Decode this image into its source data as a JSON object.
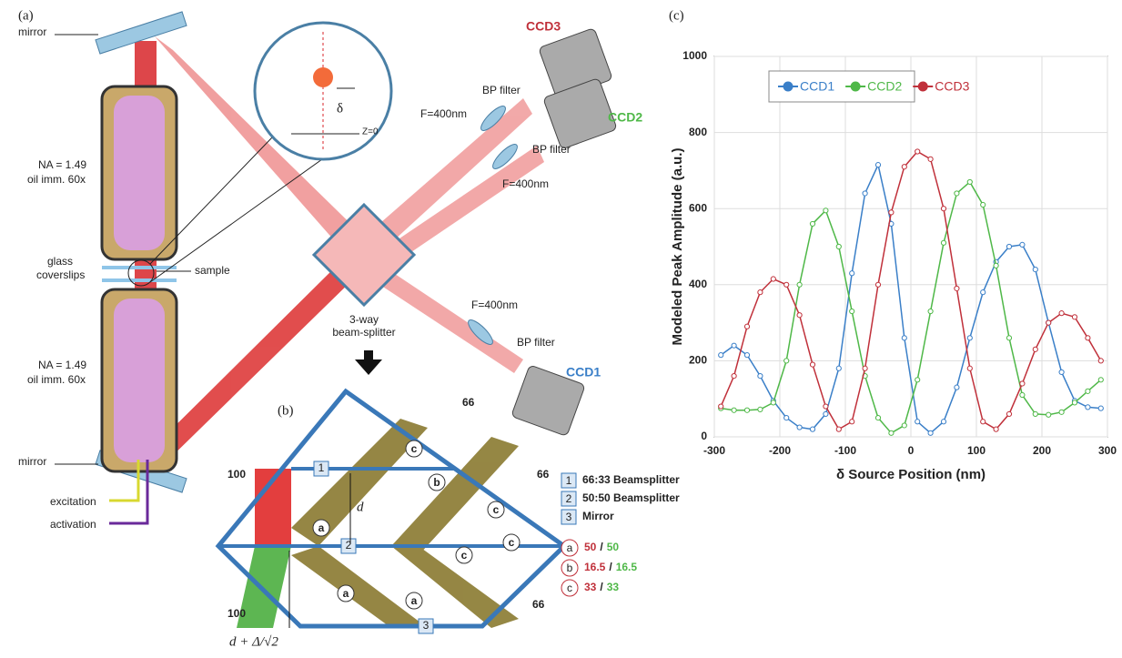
{
  "panel_a": {
    "label": "(a)",
    "mirror_top": "mirror",
    "mirror_bottom": "mirror",
    "objective_top": [
      "NA = 1.49",
      "oil imm. 60x"
    ],
    "objective_bottom": [
      "NA = 1.49",
      "oil imm. 60x"
    ],
    "coverslips": [
      "glass",
      "coverslips"
    ],
    "sample": "sample",
    "excitation": "excitation",
    "activation": "activation",
    "inset_delta": "δ",
    "inset_z": "Z=0",
    "ccd3": "CCD3",
    "ccd2": "CCD2",
    "ccd1": "CCD1",
    "bp_filter_3": "BP filter",
    "bp_filter_2": "BP filter",
    "bp_filter_1": "BP filter",
    "lens_3": "F=400nm",
    "lens_2": "F=400nm",
    "lens_1": "F=400nm",
    "splitter": [
      "3-way",
      "beam-splitter"
    ]
  },
  "panel_b": {
    "label": "(b)",
    "in_top": "100",
    "in_bottom": "100",
    "out_1": "66",
    "out_2": "66",
    "out_3": "66",
    "line_1": "1",
    "line_2": "2",
    "line_3": "3",
    "beams": [
      "c",
      "a",
      "b",
      "c",
      "a",
      "a",
      "c",
      "c"
    ],
    "d": "d",
    "d_delta": "d + Δ/√2",
    "legend": [
      {
        "key": "1",
        "text": "66:33 Beamsplitter"
      },
      {
        "key": "2",
        "text": "50:50 Beamsplitter"
      },
      {
        "key": "3",
        "text": "Mirror"
      }
    ],
    "ratios": [
      {
        "key": "a",
        "parts": [
          "50",
          "/",
          "50"
        ]
      },
      {
        "key": "b",
        "parts": [
          "16.5",
          "/",
          "16.5"
        ]
      },
      {
        "key": "c",
        "parts": [
          "33",
          "/",
          "33"
        ]
      }
    ]
  },
  "chart_data": {
    "type": "line",
    "panel_label": "(c)",
    "x_label": "δ Source Position (nm)",
    "y_label": "Modeled  Peak Amplitude (a.u.)",
    "x": [
      -290,
      -270,
      -250,
      -230,
      -210,
      -190,
      -170,
      -150,
      -130,
      -110,
      -90,
      -70,
      -50,
      -30,
      -10,
      10,
      30,
      50,
      70,
      90,
      110,
      130,
      150,
      170,
      190,
      210,
      230,
      250,
      270,
      290
    ],
    "series": [
      {
        "name": "CCD1",
        "color": "#3a7fc8",
        "values": [
          215,
          240,
          215,
          160,
          95,
          50,
          25,
          20,
          60,
          180,
          430,
          640,
          715,
          560,
          260,
          40,
          10,
          40,
          130,
          260,
          380,
          460,
          500,
          505,
          440,
          300,
          170,
          95,
          78,
          75
        ]
      },
      {
        "name": "CCD2",
        "color": "#4fb848",
        "values": [
          75,
          70,
          70,
          72,
          90,
          200,
          400,
          560,
          595,
          500,
          330,
          160,
          50,
          10,
          30,
          150,
          330,
          510,
          640,
          670,
          610,
          450,
          260,
          110,
          60,
          58,
          65,
          90,
          120,
          150
        ]
      },
      {
        "name": "CCD3",
        "color": "#c0303a",
        "values": [
          80,
          160,
          290,
          380,
          415,
          400,
          320,
          190,
          80,
          20,
          40,
          180,
          400,
          590,
          710,
          750,
          730,
          600,
          390,
          180,
          40,
          20,
          60,
          140,
          230,
          300,
          325,
          315,
          260,
          200
        ]
      }
    ],
    "xlim": [
      -300,
      300
    ],
    "ylim": [
      0,
      1000
    ],
    "xticks": [
      -300,
      -200,
      -100,
      0,
      100,
      200,
      300
    ],
    "yticks": [
      0,
      200,
      400,
      600,
      800,
      1000
    ],
    "grid": true,
    "legend": "top"
  }
}
